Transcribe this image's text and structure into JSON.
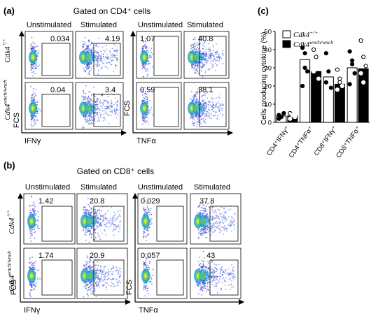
{
  "panel_a": {
    "letter": "(a)",
    "title": "Gated on CD4⁺ cells",
    "col_unstim": "Unstimulated",
    "col_stim": "Stimulated",
    "row_wt": "Cdk4⁺/⁺",
    "row_mut": "Cdk4wnch/wnch",
    "fcs": "FCS",
    "ifng": "IFNγ",
    "tnfa": "TNFα",
    "vals": [
      "0.034",
      "4.19",
      "0.04",
      "3.4",
      "1.07",
      "40.8",
      "0.59",
      "38.1"
    ]
  },
  "panel_b": {
    "letter": "(b)",
    "title": "Gated on CD8⁺ cells",
    "col_unstim": "Unstimulated",
    "col_stim": "Stimulated",
    "row_wt": "Cdk4⁺/⁺",
    "row_mut": "Cdk4wnch/wnch",
    "fcs": "FCS",
    "ifng": "IFNγ",
    "tnfa": "TNFα",
    "vals": [
      "1.42",
      "20.8",
      "1.74",
      "20.9",
      "0.029",
      "37.8",
      "0.057",
      "43"
    ]
  },
  "panel_c": {
    "letter": "(c)"
  },
  "chart_data": {
    "type": "bar",
    "ylabel": "Cells producing cytokine (%)",
    "ylim": [
      0,
      50
    ],
    "yticks": [
      "0",
      "10",
      "20",
      "30",
      "40",
      "50"
    ],
    "categories": [
      "CD4⁺IFNγ⁺",
      "CD4⁺TNFα⁺",
      "CD8⁺IFNγ⁺",
      "CD8⁺TNFα⁺"
    ],
    "legend": [
      "Cdk4+/+",
      "Cdk4wnch/wnch"
    ],
    "series": [
      {
        "name": "Cdk4+/+",
        "color": "#ffffff",
        "values": [
          3.5,
          34.5,
          25,
          30
        ],
        "points": [
          [
            4,
            3,
            5,
            2
          ],
          [
            41,
            38,
            28,
            20,
            30
          ],
          [
            38,
            28,
            19,
            22
          ],
          [
            39,
            34,
            27,
            21,
            32
          ]
        ]
      },
      {
        "name": "Cdk4wnch/wnch",
        "color": "#000000",
        "values": [
          3.5,
          28,
          21,
          29.5
        ],
        "points": [
          [
            5,
            4,
            3,
            2
          ],
          [
            40,
            36,
            24,
            28
          ],
          [
            29,
            24,
            20,
            18,
            22
          ],
          [
            45,
            36,
            31,
            27,
            22
          ]
        ]
      }
    ]
  }
}
